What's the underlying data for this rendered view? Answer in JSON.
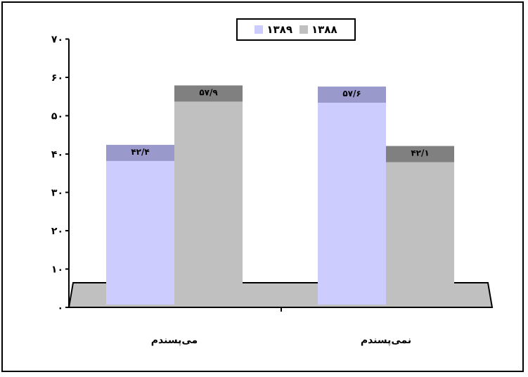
{
  "chart_data": {
    "type": "bar",
    "categories": [
      "می‌پسندم",
      "نمی‌پسندم"
    ],
    "series": [
      {
        "name": "۱۳۸۹",
        "values": [
          42.4,
          57.6
        ],
        "data_labels": [
          "۴۲/۴",
          "۵۷/۶"
        ],
        "color": "#ccccff",
        "top_color": "#9999cc"
      },
      {
        "name": "۱۳۸۸",
        "values": [
          57.9,
          42.1
        ],
        "data_labels": [
          "۵۷/۹",
          "۴۲/۱"
        ],
        "color": "#c0c0c0",
        "top_color": "#808080"
      }
    ],
    "y_ticks": [
      0,
      10,
      20,
      30,
      40,
      50,
      60,
      70
    ],
    "y_tick_labels": [
      "۰",
      "۱۰",
      "۲۰",
      "۳۰",
      "۴۰",
      "۵۰",
      "۶۰",
      "۷۰"
    ],
    "ylim": [
      0,
      70
    ],
    "legend_position": "top-center",
    "grid": false,
    "floor_color": "#c0c0c0"
  }
}
